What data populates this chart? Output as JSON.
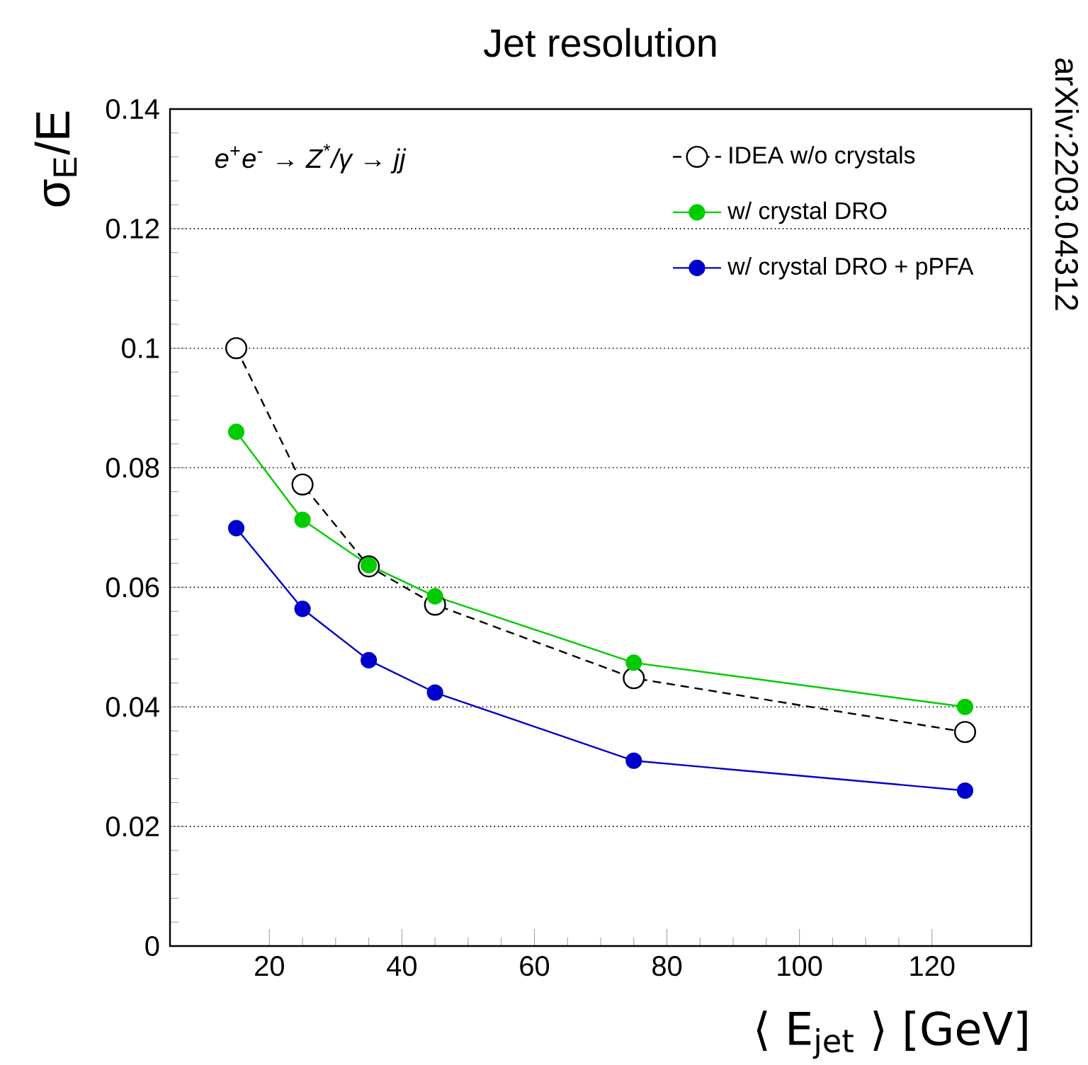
{
  "chart_data": {
    "type": "line",
    "title": "Jet resolution",
    "xlabel": "⟨ E$_{jet}$ ⟩ [GeV]",
    "ylabel": "σ$_{E}$/E",
    "annotations": [
      "e$^{+}$e$^{-}$ → Z$^{*}$/γ → jj",
      "arXiv:2203.04312"
    ],
    "x": [
      15,
      25,
      35,
      45,
      75,
      125
    ],
    "series": [
      {
        "name": "IDEA w/o crystals",
        "color": "#000000",
        "line_style": "dashed",
        "values": [
          0.1,
          0.0772,
          0.0635,
          0.0571,
          0.0448,
          0.0358
        ]
      },
      {
        "name": "w/ crystal DRO",
        "color": "#00cc00",
        "line_style": "solid",
        "values": [
          0.086,
          0.0713,
          0.0637,
          0.0585,
          0.0474,
          0.04
        ]
      },
      {
        "name": "w/ crystal DRO + pPFA",
        "color": "#0000cc",
        "line_style": "solid",
        "values": [
          0.0699,
          0.0564,
          0.0478,
          0.0424,
          0.031,
          0.026
        ]
      }
    ],
    "xlim": [
      5,
      135
    ],
    "ylim": [
      0,
      0.14
    ],
    "xticks": [
      20,
      40,
      60,
      80,
      100,
      120
    ],
    "yticks": [
      0,
      0.02,
      0.04,
      0.06,
      0.08,
      {
        "value": 0.1,
        "label": "0.1"
      },
      0.12,
      0.14
    ],
    "grid": "y",
    "legend": "top right",
    "marker": "circle"
  }
}
